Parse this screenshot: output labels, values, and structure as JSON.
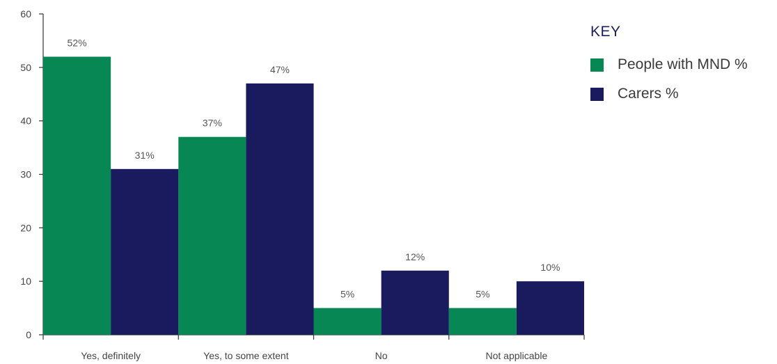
{
  "chart_data": {
    "type": "bar",
    "categories": [
      "Yes, definitely",
      "Yes, to some extent",
      "No",
      "Not applicable"
    ],
    "series": [
      {
        "name": "People with MND %",
        "values": [
          52,
          37,
          5,
          5
        ],
        "labels": [
          "52%",
          "37%",
          "5%",
          "5%"
        ],
        "color": "#078753"
      },
      {
        "name": "Carers %",
        "values": [
          31,
          47,
          12,
          10
        ],
        "labels": [
          "31%",
          "47%",
          "12%",
          "10%"
        ],
        "color": "#1a1a5e"
      }
    ],
    "ylim": [
      0,
      60
    ],
    "yticks": [
      0,
      10,
      20,
      30,
      40,
      50,
      60
    ],
    "legend": {
      "title": "KEY",
      "position": "top-right"
    }
  }
}
